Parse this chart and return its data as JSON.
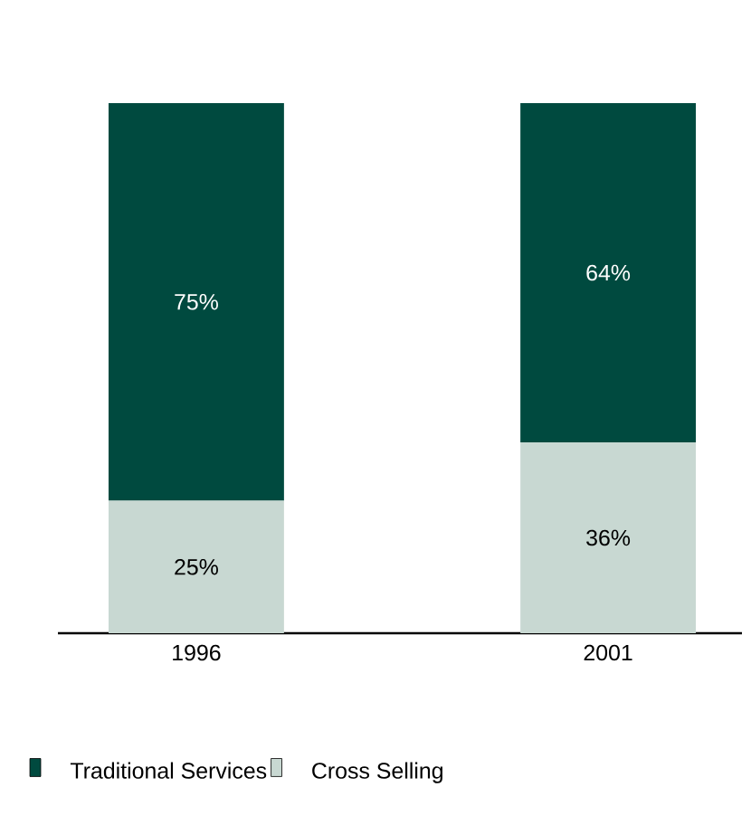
{
  "chart_data": {
    "type": "bar",
    "stacked": true,
    "categories": [
      "1996",
      "2001"
    ],
    "legend": "bottom",
    "series": [
      {
        "name": "Cross Selling",
        "color": "#c8d8d2",
        "values": [
          25,
          36
        ],
        "value_labels": [
          "25%",
          "36%"
        ]
      },
      {
        "name": "Traditional Services",
        "color": "#004a3f",
        "values": [
          75,
          64
        ],
        "value_labels": [
          "75%",
          "64%"
        ]
      }
    ]
  }
}
